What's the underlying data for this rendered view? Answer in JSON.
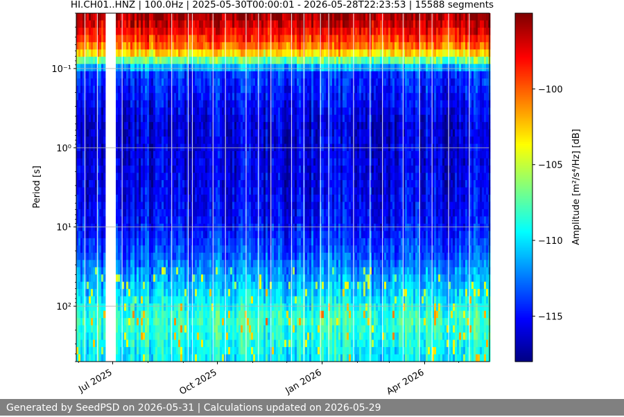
{
  "chart_data": {
    "type": "heatmap",
    "title": "HI.CH01..HNZ | 100.0Hz | 2025-05-30T00:00:01 - 2026-05-28T22:23:53 | 15588 segments",
    "xlabel": "",
    "ylabel": "Period [s]",
    "x_tick_labels": [
      "Jul 2025",
      "Oct 2025",
      "Jan 2026",
      "Apr 2026"
    ],
    "x_tick_dates": [
      "2025-07-01",
      "2025-10-01",
      "2026-01-01",
      "2026-04-01"
    ],
    "x_range": [
      "2025-05-30",
      "2026-05-28"
    ],
    "y_scale": "log",
    "y_inverted": true,
    "y_range": [
      0.02,
      500
    ],
    "y_ticks": [
      0.1,
      1,
      10,
      100
    ],
    "y_tick_labels": [
      "10⁻¹",
      "10⁰",
      "10¹",
      "10²"
    ],
    "grid": true,
    "data_gap": [
      "2025-06-25",
      "2025-07-03"
    ],
    "colorbar": {
      "label": "Amplitude [m²/s⁴/Hz] [dB]",
      "colormap": "jet",
      "range": [
        -118,
        -95
      ],
      "ticks": [
        -100,
        -105,
        -110,
        -115
      ],
      "tick_labels": [
        "−100",
        "−105",
        "−110",
        "−115"
      ]
    },
    "period_profile": [
      {
        "period": 0.02,
        "db": -95.5
      },
      {
        "period": 0.03,
        "db": -97
      },
      {
        "period": 0.05,
        "db": -100
      },
      {
        "period": 0.07,
        "db": -104
      },
      {
        "period": 0.09,
        "db": -110
      },
      {
        "period": 0.12,
        "db": -114
      },
      {
        "period": 0.5,
        "db": -116
      },
      {
        "period": 3,
        "db": -115.5
      },
      {
        "period": 8,
        "db": -115
      },
      {
        "period": 20,
        "db": -113.5
      },
      {
        "period": 50,
        "db": -111
      },
      {
        "period": 150,
        "db": -108
      },
      {
        "period": 400,
        "db": -109.5
      }
    ]
  },
  "footer": {
    "text": "Generated by SeedPSD on 2026-05-31 | Calculations updated on 2026-05-29"
  }
}
